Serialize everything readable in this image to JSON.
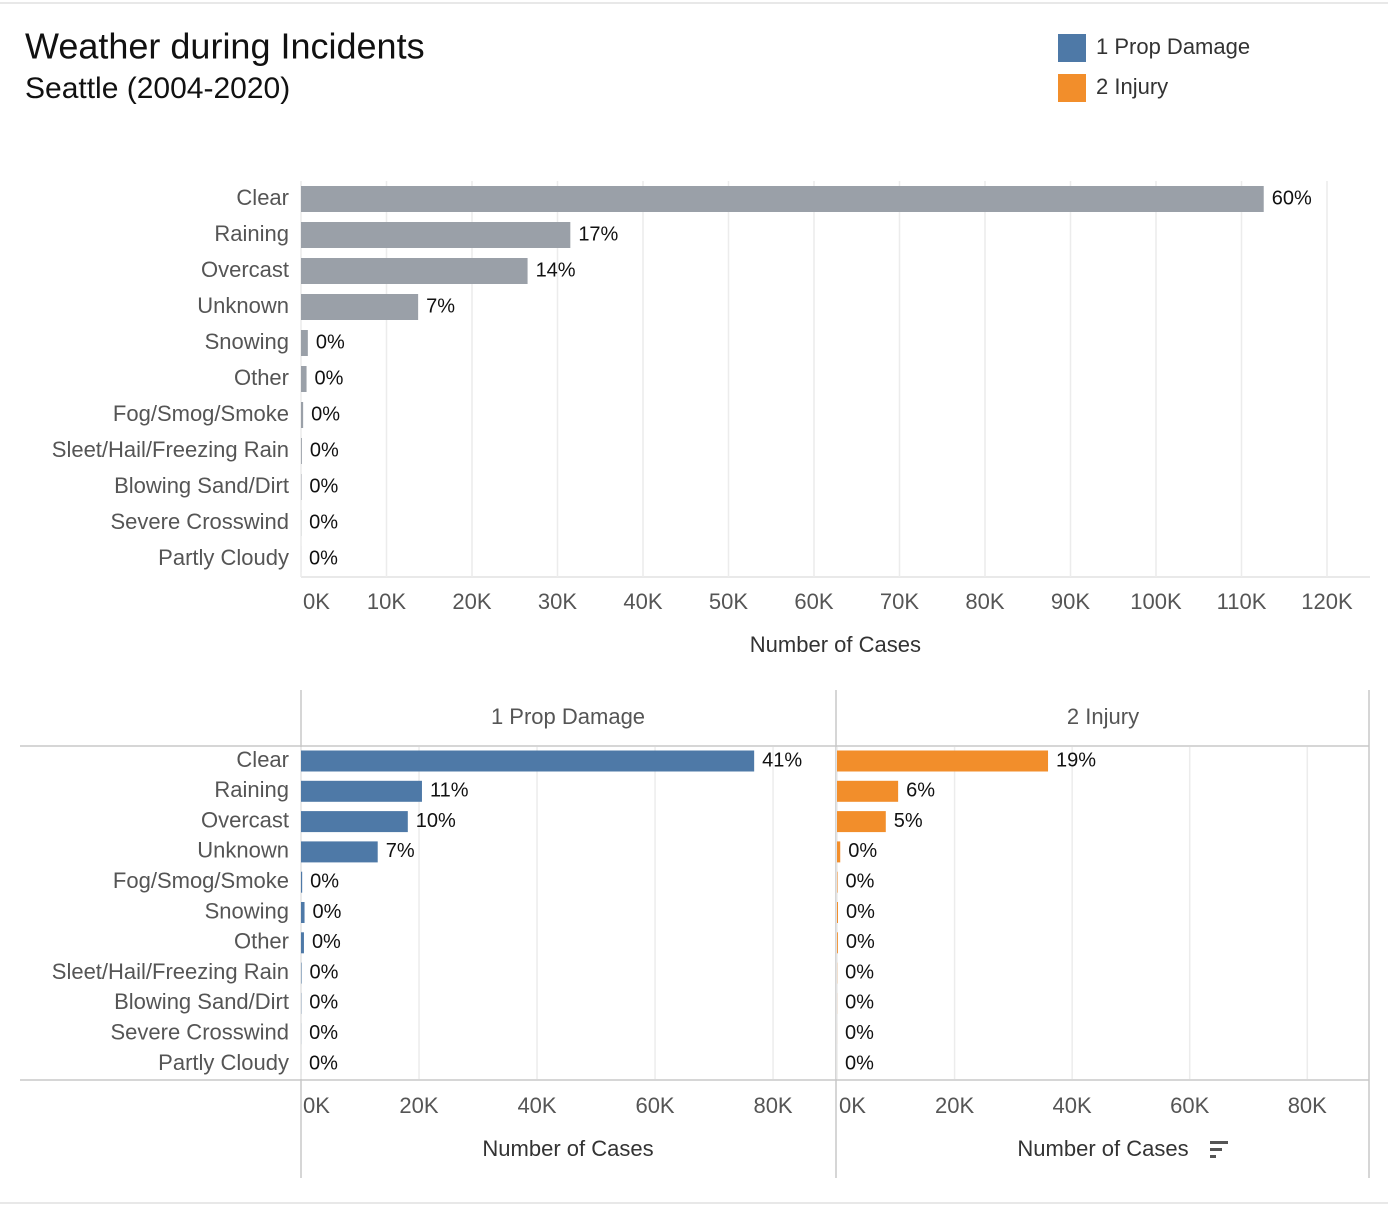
{
  "header": {
    "title": "Weather during Incidents",
    "subtitle": "Seattle (2004-2020)"
  },
  "chart_data": [
    {
      "type": "bar",
      "orientation": "horizontal",
      "color": "#9aa0a8",
      "grid": true,
      "categories": [
        "Clear",
        "Raining",
        "Overcast",
        "Unknown",
        "Snowing",
        "Other",
        "Fog/Smog/Smoke",
        "Sleet/Hail/Freezing Rain",
        "Blowing Sand/Dirt",
        "Severe Crosswind",
        "Partly Cloudy"
      ],
      "values": [
        112600,
        31500,
        26500,
        13700,
        800,
        650,
        250,
        100,
        50,
        20,
        5
      ],
      "share_labels": [
        "60%",
        "17%",
        "14%",
        "7%",
        "0%",
        "0%",
        "0%",
        "0%",
        "0%",
        "0%",
        "0%"
      ],
      "xlim": [
        0,
        125000
      ],
      "xticks": [
        {
          "value": 0,
          "label": "0K"
        },
        {
          "value": 10000,
          "label": "10K"
        },
        {
          "value": 20000,
          "label": "20K"
        },
        {
          "value": 30000,
          "label": "30K"
        },
        {
          "value": 40000,
          "label": "40K"
        },
        {
          "value": 50000,
          "label": "50K"
        },
        {
          "value": 60000,
          "label": "60K"
        },
        {
          "value": 70000,
          "label": "70K"
        },
        {
          "value": 80000,
          "label": "80K"
        },
        {
          "value": 90000,
          "label": "90K"
        },
        {
          "value": 100000,
          "label": "100K"
        },
        {
          "value": 110000,
          "label": "110K"
        },
        {
          "value": 120000,
          "label": "120K"
        }
      ],
      "xlabel": "Number of Cases"
    },
    {
      "type": "bar",
      "orientation": "horizontal",
      "grid": true,
      "categories": [
        "Clear",
        "Raining",
        "Overcast",
        "Unknown",
        "Fog/Smog/Smoke",
        "Snowing",
        "Other",
        "Sleet/Hail/Freezing Rain",
        "Blowing Sand/Dirt",
        "Severe Crosswind",
        "Partly Cloudy"
      ],
      "series": [
        {
          "name": "1 Prop Damage",
          "color": "#4e79a7",
          "values": [
            76800,
            20500,
            18100,
            13000,
            200,
            600,
            500,
            80,
            40,
            15,
            3
          ],
          "share_labels": [
            "41%",
            "11%",
            "10%",
            "7%",
            "0%",
            "0%",
            "0%",
            "0%",
            "0%",
            "0%",
            "0%"
          ]
        },
        {
          "name": "2 Injury",
          "color": "#f28e2b",
          "values": [
            35900,
            10400,
            8300,
            550,
            90,
            170,
            150,
            30,
            15,
            5,
            2
          ],
          "share_labels": [
            "19%",
            "6%",
            "5%",
            "0%",
            "0%",
            "0%",
            "0%",
            "0%",
            "0%",
            "0%",
            "0%"
          ]
        }
      ],
      "xlim": [
        0,
        90500
      ],
      "xticks": [
        {
          "value": 0,
          "label": "0K"
        },
        {
          "value": 20000,
          "label": "20K"
        },
        {
          "value": 40000,
          "label": "40K"
        },
        {
          "value": 60000,
          "label": "60K"
        },
        {
          "value": 80000,
          "label": "80K"
        }
      ],
      "xlabel": "Number of Cases"
    }
  ]
}
